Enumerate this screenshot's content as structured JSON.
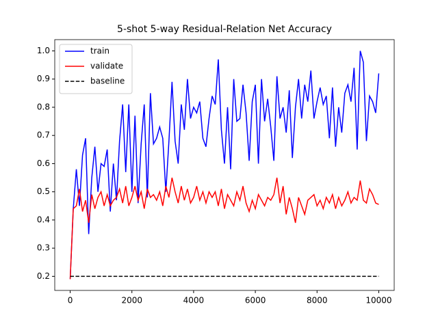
{
  "chart_data": {
    "type": "line",
    "title": "5-shot 5-way Residual-Relation Net Accuracy",
    "x": [
      0,
      100,
      200,
      300,
      400,
      500,
      600,
      700,
      800,
      900,
      1000,
      1100,
      1200,
      1300,
      1400,
      1500,
      1600,
      1700,
      1800,
      1900,
      2000,
      2100,
      2200,
      2300,
      2400,
      2500,
      2600,
      2700,
      2800,
      2900,
      3000,
      3100,
      3200,
      3300,
      3400,
      3500,
      3600,
      3700,
      3800,
      3900,
      4000,
      4100,
      4200,
      4300,
      4400,
      4500,
      4600,
      4700,
      4800,
      4900,
      5000,
      5100,
      5200,
      5300,
      5400,
      5500,
      5600,
      5700,
      5800,
      5900,
      6000,
      6100,
      6200,
      6300,
      6400,
      6500,
      6600,
      6700,
      6800,
      6900,
      7000,
      7100,
      7200,
      7300,
      7400,
      7500,
      7600,
      7700,
      7800,
      7900,
      8000,
      8100,
      8200,
      8300,
      8400,
      8500,
      8600,
      8700,
      8800,
      8900,
      9000,
      9100,
      9200,
      9300,
      9400,
      9500,
      9600,
      9700,
      9800,
      9900,
      10000
    ],
    "series": [
      {
        "name": "train",
        "color": "#0000ff",
        "dash": false,
        "values": [
          0.19,
          0.44,
          0.58,
          0.45,
          0.63,
          0.69,
          0.35,
          0.55,
          0.66,
          0.5,
          0.6,
          0.59,
          0.65,
          0.43,
          0.6,
          0.47,
          0.68,
          0.81,
          0.57,
          0.81,
          0.5,
          0.77,
          0.46,
          0.67,
          0.81,
          0.48,
          0.85,
          0.67,
          0.69,
          0.73,
          0.69,
          0.5,
          0.68,
          0.89,
          0.68,
          0.6,
          0.81,
          0.72,
          0.9,
          0.76,
          0.8,
          0.78,
          0.82,
          0.69,
          0.66,
          0.76,
          0.84,
          0.81,
          0.97,
          0.72,
          0.6,
          0.8,
          0.58,
          0.9,
          0.75,
          0.76,
          0.88,
          0.78,
          0.61,
          0.82,
          0.88,
          0.6,
          0.9,
          0.75,
          0.83,
          0.73,
          0.61,
          0.91,
          0.76,
          0.8,
          0.71,
          0.86,
          0.62,
          0.8,
          0.9,
          0.76,
          0.88,
          0.82,
          0.93,
          0.76,
          0.82,
          0.87,
          0.81,
          0.84,
          0.69,
          0.87,
          0.66,
          0.8,
          0.71,
          0.85,
          0.88,
          0.82,
          0.94,
          0.65,
          1.0,
          0.96,
          0.68,
          0.84,
          0.82,
          0.78,
          0.92
        ]
      },
      {
        "name": "validate",
        "color": "#ff0000",
        "dash": false,
        "values": [
          0.19,
          0.44,
          0.45,
          0.51,
          0.43,
          0.47,
          0.39,
          0.49,
          0.44,
          0.48,
          0.5,
          0.45,
          0.49,
          0.45,
          0.47,
          0.48,
          0.51,
          0.46,
          0.52,
          0.45,
          0.48,
          0.52,
          0.47,
          0.5,
          0.44,
          0.51,
          0.48,
          0.49,
          0.47,
          0.5,
          0.45,
          0.52,
          0.48,
          0.55,
          0.5,
          0.46,
          0.52,
          0.47,
          0.51,
          0.46,
          0.48,
          0.52,
          0.47,
          0.5,
          0.46,
          0.5,
          0.48,
          0.5,
          0.45,
          0.51,
          0.44,
          0.49,
          0.47,
          0.45,
          0.5,
          0.47,
          0.52,
          0.46,
          0.43,
          0.47,
          0.44,
          0.49,
          0.47,
          0.45,
          0.48,
          0.47,
          0.49,
          0.55,
          0.46,
          0.52,
          0.42,
          0.48,
          0.44,
          0.39,
          0.48,
          0.45,
          0.42,
          0.47,
          0.48,
          0.49,
          0.45,
          0.47,
          0.44,
          0.48,
          0.46,
          0.49,
          0.44,
          0.48,
          0.45,
          0.47,
          0.5,
          0.46,
          0.48,
          0.47,
          0.54,
          0.47,
          0.46,
          0.51,
          0.49,
          0.46,
          0.455
        ]
      },
      {
        "name": "baseline",
        "color": "#000000",
        "dash": true,
        "values": [
          0.2,
          0.2,
          0.2,
          0.2,
          0.2,
          0.2,
          0.2,
          0.2,
          0.2,
          0.2,
          0.2,
          0.2,
          0.2,
          0.2,
          0.2,
          0.2,
          0.2,
          0.2,
          0.2,
          0.2,
          0.2,
          0.2,
          0.2,
          0.2,
          0.2,
          0.2,
          0.2,
          0.2,
          0.2,
          0.2,
          0.2,
          0.2,
          0.2,
          0.2,
          0.2,
          0.2,
          0.2,
          0.2,
          0.2,
          0.2,
          0.2,
          0.2,
          0.2,
          0.2,
          0.2,
          0.2,
          0.2,
          0.2,
          0.2,
          0.2,
          0.2,
          0.2,
          0.2,
          0.2,
          0.2,
          0.2,
          0.2,
          0.2,
          0.2,
          0.2,
          0.2,
          0.2,
          0.2,
          0.2,
          0.2,
          0.2,
          0.2,
          0.2,
          0.2,
          0.2,
          0.2,
          0.2,
          0.2,
          0.2,
          0.2,
          0.2,
          0.2,
          0.2,
          0.2,
          0.2,
          0.2,
          0.2,
          0.2,
          0.2,
          0.2,
          0.2,
          0.2,
          0.2,
          0.2,
          0.2,
          0.2,
          0.2,
          0.2,
          0.2,
          0.2,
          0.2,
          0.2,
          0.2,
          0.2,
          0.2,
          0.2
        ]
      }
    ],
    "xlim": [
      -500,
      10500
    ],
    "xticks": [
      0,
      2000,
      4000,
      6000,
      8000,
      10000
    ],
    "ylim": [
      0.15,
      1.04
    ],
    "yticks": [
      0.2,
      0.3,
      0.4,
      0.5,
      0.6,
      0.7,
      0.8,
      0.9,
      {
        "value": 1,
        "label": "1.0"
      }
    ],
    "grid": false,
    "legend": "upper-left"
  }
}
